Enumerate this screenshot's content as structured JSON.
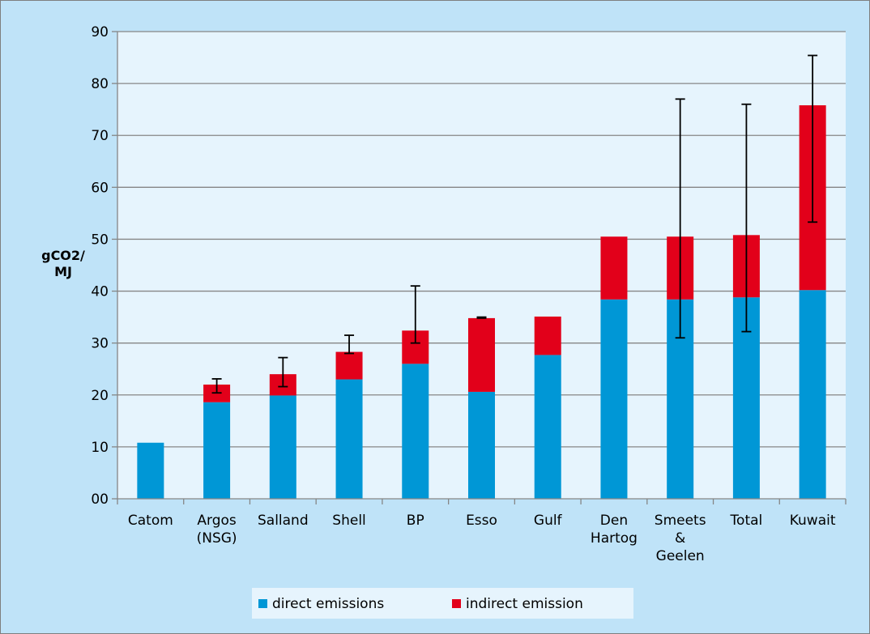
{
  "chart_data": {
    "type": "bar",
    "stacked": true,
    "title": "",
    "xlabel": "",
    "ylabel_lines": [
      "gCO2/",
      "MJ"
    ],
    "ylim": [
      0,
      90
    ],
    "yticks": [
      {
        "value": 0,
        "label": "00"
      },
      {
        "value": 10,
        "label": "10"
      },
      {
        "value": 20,
        "label": "20"
      },
      {
        "value": 30,
        "label": "30"
      },
      {
        "value": 40,
        "label": "40"
      },
      {
        "value": 50,
        "label": "50"
      },
      {
        "value": 60,
        "label": "60"
      },
      {
        "value": 70,
        "label": "70"
      },
      {
        "value": 80,
        "label": "80"
      },
      {
        "value": 90,
        "label": "90"
      }
    ],
    "categories": [
      [
        "Catom"
      ],
      [
        "Argos",
        "(NSG)"
      ],
      [
        "Salland"
      ],
      [
        "Shell"
      ],
      [
        "BP"
      ],
      [
        "Esso"
      ],
      [
        "Gulf"
      ],
      [
        "Den",
        "Hartog"
      ],
      [
        "Smeets",
        "&",
        "Geelen"
      ],
      [
        "Total"
      ],
      [
        "Kuwait"
      ]
    ],
    "series": [
      {
        "name": "direct emissions",
        "color": "#0097d6",
        "values": [
          10.8,
          18.6,
          19.9,
          23.0,
          26.0,
          20.6,
          27.7,
          38.4,
          38.4,
          38.8,
          40.2
        ]
      },
      {
        "name": "indirect emission",
        "color": "#e2001a",
        "values": [
          0,
          3.4,
          4.1,
          5.3,
          6.4,
          14.2,
          7.4,
          12.1,
          12.1,
          12.0,
          35.6
        ]
      }
    ],
    "error_bars": [
      null,
      [
        20.4,
        23.1
      ],
      [
        21.6,
        27.2
      ],
      [
        28.0,
        31.5
      ],
      [
        30.0,
        41.0
      ],
      [
        34.8,
        35.0
      ],
      null,
      null,
      [
        31.0,
        77.0
      ],
      [
        32.2,
        76.0
      ],
      [
        53.3,
        85.4
      ]
    ],
    "grid": true,
    "legend_position": "bottom"
  }
}
